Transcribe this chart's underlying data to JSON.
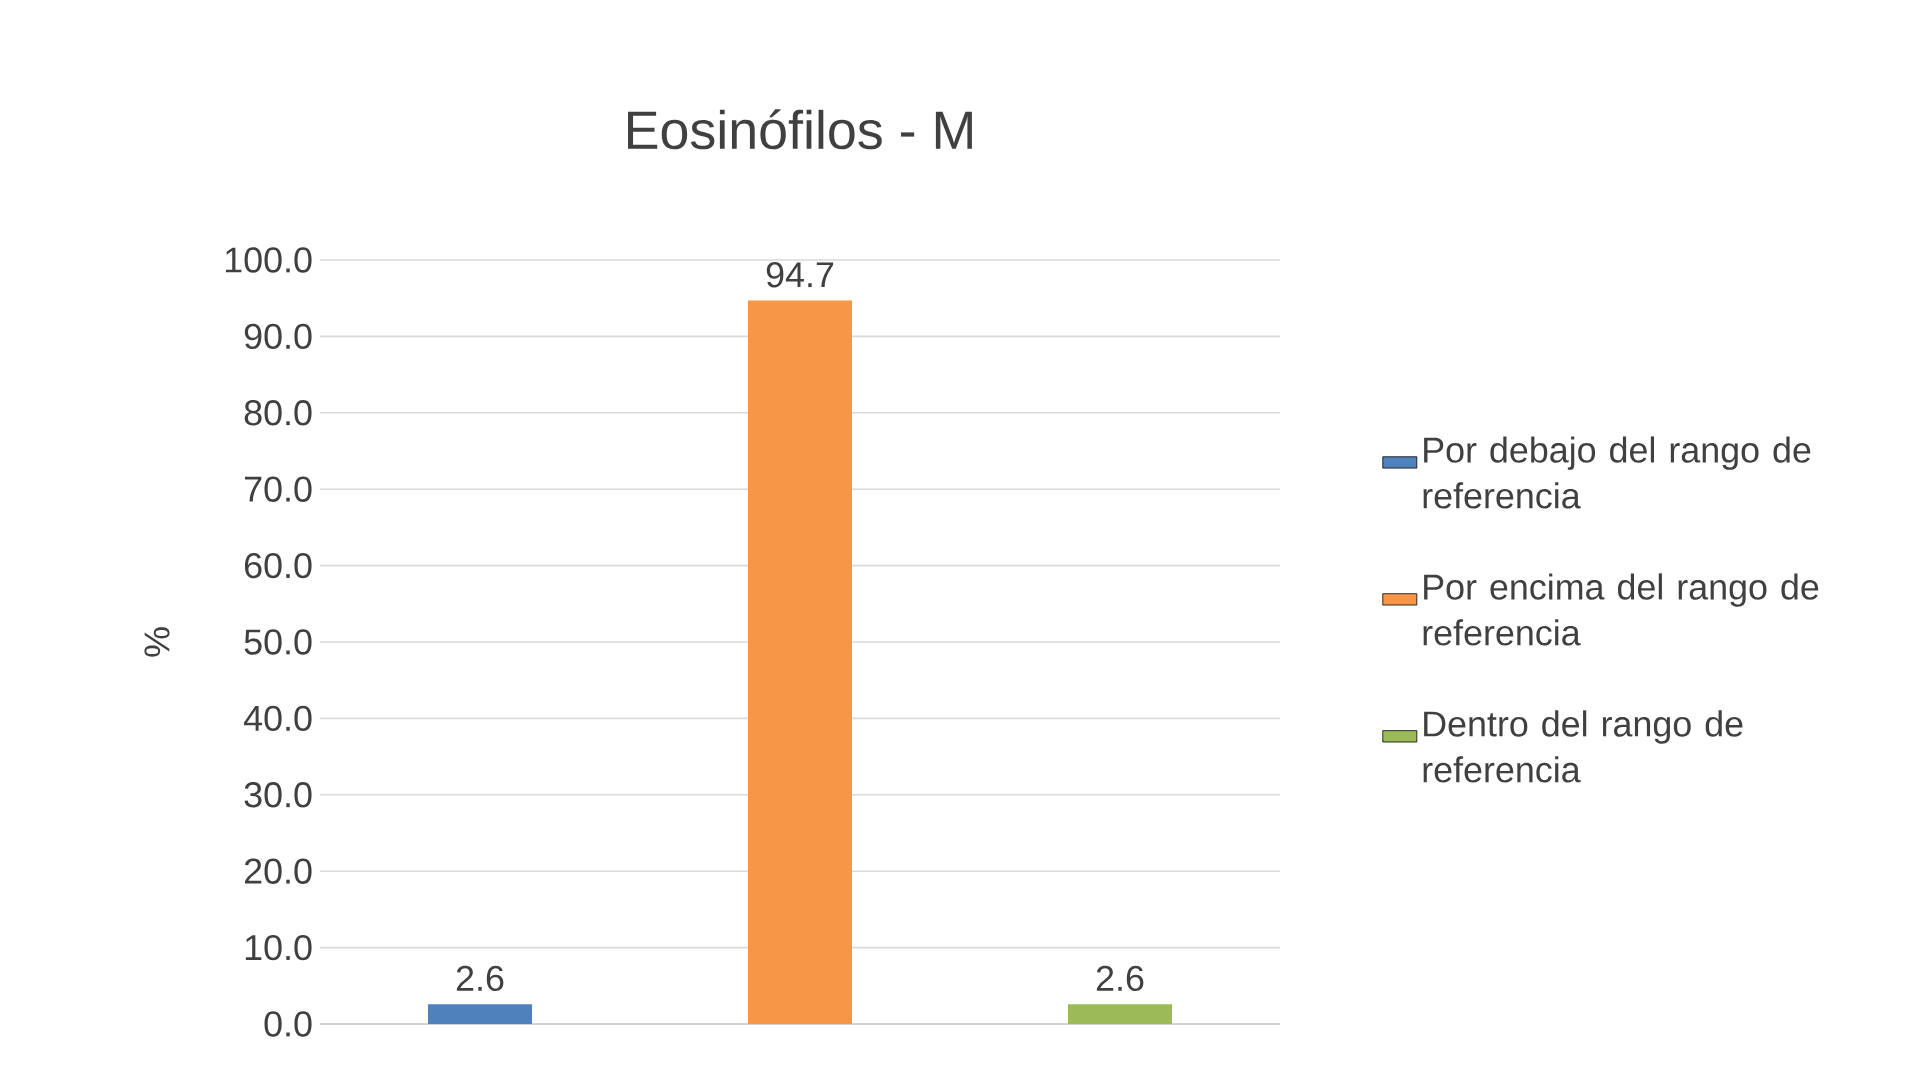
{
  "chart_data": {
    "type": "bar",
    "title": "Eosinófilos - M",
    "ylabel": "%",
    "categories": [
      null,
      null,
      null
    ],
    "series": [
      {
        "name": "Por debajo del rango de referencia",
        "color": "#4f81bd",
        "values": [
          2.6,
          null,
          null
        ],
        "value_labels": [
          "2.6",
          null,
          null
        ]
      },
      {
        "name": "Por encima del rango de referencia",
        "color": "#f79646",
        "values": [
          null,
          94.7,
          null
        ],
        "value_labels": [
          null,
          "94.7",
          null
        ]
      },
      {
        "name": "Dentro del rango de referencia",
        "color": "#9bbb59",
        "values": [
          null,
          null,
          2.6
        ],
        "value_labels": [
          null,
          null,
          "2.6"
        ]
      }
    ],
    "ylim": [
      0,
      100
    ],
    "yticks": [
      {
        "value": 0,
        "label": "0.0"
      },
      {
        "value": 10,
        "label": "10.0"
      },
      {
        "value": 20,
        "label": "20.0"
      },
      {
        "value": 30,
        "label": "30.0"
      },
      {
        "value": 40,
        "label": "40.0"
      },
      {
        "value": 50,
        "label": "50.0"
      },
      {
        "value": 60,
        "label": "60.0"
      },
      {
        "value": 70,
        "label": "70.0"
      },
      {
        "value": 80,
        "label": "80.0"
      },
      {
        "value": 90,
        "label": "90.0"
      },
      {
        "value": 100,
        "label": "100.0"
      }
    ],
    "grid": "y",
    "legend": "right"
  }
}
